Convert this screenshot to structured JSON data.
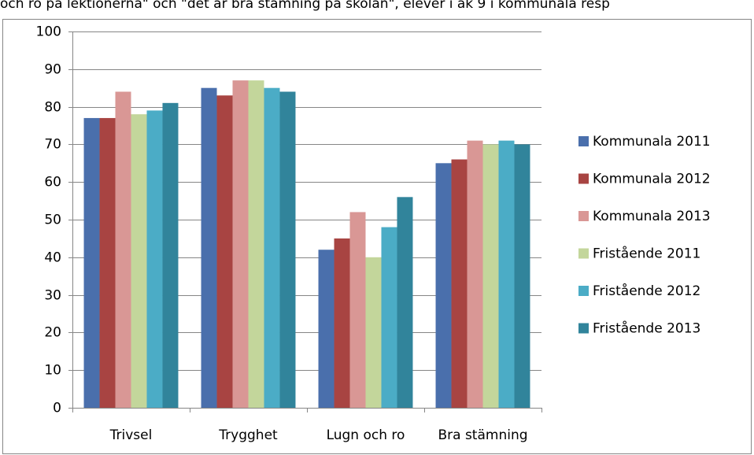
{
  "chart_data": {
    "type": "bar",
    "title": "och ro på lektionerna\" och \"det är bra stämning på skolan\", elever i åk 9 i kommunala resp",
    "categories": [
      "Trivsel",
      "Trygghet",
      "Lugn och ro",
      "Bra stämning"
    ],
    "series": [
      {
        "name": "Kommunala 2011",
        "color": "#4a6fac",
        "values": [
          77,
          85,
          42,
          65
        ]
      },
      {
        "name": "Kommunala 2012",
        "color": "#a84442",
        "values": [
          77,
          83,
          45,
          66
        ]
      },
      {
        "name": "Kommunala 2013",
        "color": "#d99795",
        "values": [
          84,
          87,
          52,
          71
        ]
      },
      {
        "name": "Fristående 2011",
        "color": "#c3d69b",
        "values": [
          78,
          87,
          40,
          70
        ]
      },
      {
        "name": "Fristående 2012",
        "color": "#4bacc6",
        "values": [
          79,
          85,
          48,
          71
        ]
      },
      {
        "name": "Fristående 2013",
        "color": "#31849b",
        "values": [
          81,
          84,
          56,
          70
        ]
      }
    ],
    "ylim": [
      0,
      100
    ],
    "yticks": [
      0,
      10,
      20,
      30,
      40,
      50,
      60,
      70,
      80,
      90,
      100
    ],
    "grid": true,
    "legend": "right"
  }
}
